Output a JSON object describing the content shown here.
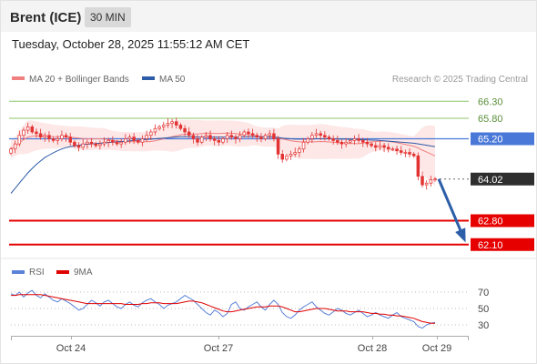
{
  "header": {
    "instrument": "Brent (ICE)",
    "timeframe": "30 MIN",
    "datetime": "Tuesday, October 28, 2025 11:55:12 AM CET"
  },
  "legend": {
    "ma20": "MA 20 + Bollinger Bands",
    "ma50": "MA 50",
    "source": "Research © 2025 Trading Central"
  },
  "rsi_legend": {
    "rsi": "RSI",
    "ma9": "9MA"
  },
  "colors": {
    "candle": "#e33232",
    "ma20": "#f08080",
    "band_fill": "#fde3e3",
    "ma50": "#2c5ba8",
    "green_level": "#8cc66b",
    "blue_level": "#4a78d8",
    "red_level": "#e60000",
    "current": "#2e2e2e",
    "arrow": "#2d5ea8",
    "rsi": "#5b82d8",
    "rsi_ma": "#e00000"
  },
  "chart_data": [
    {
      "type": "candlestick",
      "title": "",
      "ylim": [
        61.8,
        66.6
      ],
      "x_ticks": [
        "Oct 24",
        "Oct 27",
        "Oct 28",
        "Oct 29"
      ],
      "levels": [
        {
          "value": 66.3,
          "label": "66.30",
          "style": "resistance"
        },
        {
          "value": 65.8,
          "label": "65.80",
          "style": "resistance"
        },
        {
          "value": 65.2,
          "label": "65.20",
          "style": "pivot"
        },
        {
          "value": 64.02,
          "label": "64.02",
          "style": "current"
        },
        {
          "value": 62.8,
          "label": "62.80",
          "style": "support"
        },
        {
          "value": 62.1,
          "label": "62.10",
          "style": "support"
        }
      ],
      "closes": [
        64.9,
        65.05,
        65.3,
        65.45,
        65.55,
        65.4,
        65.35,
        65.25,
        65.3,
        65.2,
        65.15,
        65.2,
        65.3,
        65.25,
        65.1,
        65.0,
        64.95,
        65.05,
        65.1,
        65.05,
        65.0,
        65.05,
        65.1,
        65.15,
        65.1,
        65.05,
        65.1,
        65.2,
        65.25,
        65.15,
        65.1,
        65.2,
        65.3,
        65.4,
        65.5,
        65.55,
        65.6,
        65.65,
        65.7,
        65.6,
        65.5,
        65.4,
        65.3,
        65.2,
        65.1,
        65.25,
        65.3,
        65.2,
        65.15,
        65.1,
        65.2,
        65.3,
        65.25,
        65.2,
        65.3,
        65.4,
        65.35,
        65.3,
        65.25,
        65.2,
        65.3,
        65.35,
        65.2,
        64.75,
        64.6,
        64.7,
        64.75,
        64.8,
        64.9,
        65.1,
        65.2,
        65.3,
        65.35,
        65.3,
        65.25,
        65.2,
        65.15,
        65.1,
        65.05,
        65.1,
        65.15,
        65.2,
        65.15,
        65.1,
        65.05,
        65.0,
        64.95,
        65.0,
        64.95,
        64.9,
        64.9,
        64.85,
        64.8,
        64.8,
        64.75,
        64.7,
        64.1,
        63.85,
        63.9,
        64.0,
        64.02
      ],
      "ma50": [
        63.6,
        63.75,
        63.9,
        64.05,
        64.2,
        64.33,
        64.45,
        64.55,
        64.65,
        64.72,
        64.79,
        64.85,
        64.9,
        64.94,
        64.97,
        64.99,
        65.01,
        65.03,
        65.04,
        65.05,
        65.06,
        65.07,
        65.08,
        65.09,
        65.1,
        65.11,
        65.12,
        65.13,
        65.14,
        65.15,
        65.16,
        65.17,
        65.18,
        65.19,
        65.2,
        65.21,
        65.22,
        65.23,
        65.24,
        65.25,
        65.26,
        65.26,
        65.26,
        65.26,
        65.25,
        65.25,
        65.25,
        65.25,
        65.25,
        65.25,
        65.25,
        65.25,
        65.25,
        65.25,
        65.25,
        65.26,
        65.26,
        65.26,
        65.26,
        65.26,
        65.26,
        65.26,
        65.25,
        65.24,
        65.22,
        65.21,
        65.2,
        65.19,
        65.19,
        65.19,
        65.19,
        65.19,
        65.2,
        65.2,
        65.2,
        65.2,
        65.2,
        65.19,
        65.19,
        65.19,
        65.18,
        65.18,
        65.18,
        65.17,
        65.17,
        65.16,
        65.16,
        65.15,
        65.14,
        65.13,
        65.12,
        65.11,
        65.1,
        65.09,
        65.08,
        65.07,
        65.05,
        65.03,
        65.01,
        64.99,
        64.97
      ]
    },
    {
      "type": "line",
      "title": "",
      "ylim": [
        20,
        80
      ],
      "y_ticks": [
        70,
        50,
        30
      ],
      "series": [
        {
          "name": "RSI",
          "values": [
            68,
            66,
            70,
            64,
            69,
            72,
            66,
            63,
            68,
            64,
            60,
            58,
            62,
            59,
            56,
            52,
            48,
            50,
            55,
            60,
            57,
            53,
            58,
            60,
            56,
            52,
            50,
            55,
            58,
            54,
            52,
            57,
            60,
            62,
            58,
            55,
            50,
            54,
            56,
            58,
            62,
            66,
            63,
            60,
            55,
            50,
            45,
            42,
            48,
            45,
            40,
            44,
            55,
            58,
            50,
            48,
            52,
            55,
            58,
            52,
            48,
            55,
            60,
            55,
            45,
            40,
            38,
            42,
            48,
            52,
            55,
            58,
            52,
            48,
            44,
            42,
            46,
            50,
            48,
            44,
            42,
            45,
            48,
            44,
            40,
            42,
            45,
            42,
            40,
            38,
            42,
            45,
            40,
            38,
            36,
            34,
            28,
            26,
            30,
            32,
            33
          ]
        },
        {
          "name": "9MA",
          "values": [
            66,
            66,
            67,
            67,
            67,
            67,
            67,
            67,
            66,
            65,
            64,
            63,
            62,
            61,
            60,
            59,
            58,
            57,
            56,
            56,
            56,
            56,
            56,
            56,
            56,
            56,
            56,
            55,
            55,
            55,
            55,
            56,
            56,
            57,
            57,
            57,
            56,
            56,
            56,
            56,
            57,
            58,
            59,
            59,
            58,
            57,
            55,
            53,
            51,
            49,
            47,
            46,
            46,
            47,
            48,
            49,
            50,
            51,
            52,
            52,
            52,
            53,
            53,
            53,
            52,
            50,
            48,
            46,
            46,
            47,
            48,
            49,
            50,
            50,
            50,
            49,
            48,
            47,
            47,
            47,
            46,
            46,
            46,
            46,
            45,
            44,
            44,
            43,
            43,
            42,
            42,
            41,
            41,
            40,
            39,
            38,
            36,
            34,
            33,
            32,
            32
          ]
        }
      ]
    }
  ]
}
